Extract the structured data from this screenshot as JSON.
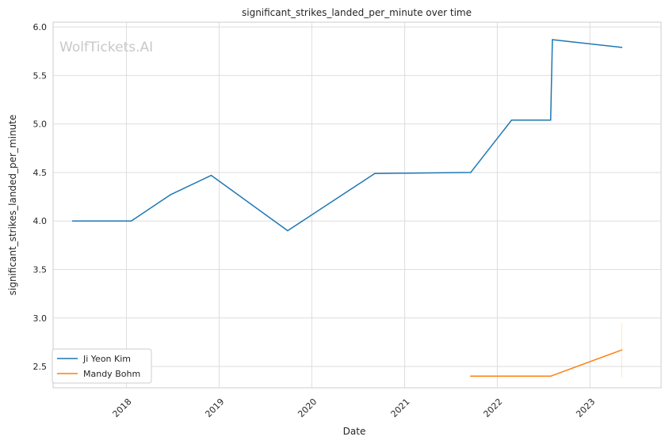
{
  "chart_data": {
    "type": "line",
    "title": "significant_strikes_landed_per_minute over time",
    "xlabel": "Date",
    "ylabel": "significant_strikes_landed_per_minute",
    "watermark": "WolfTickets.AI",
    "x_type": "date",
    "xlim": [
      "2017-03-18",
      "2023-10-08"
    ],
    "ylim": [
      2.28,
      6.05
    ],
    "x_ticks": [
      {
        "date": "2018-01-01",
        "label": "2018"
      },
      {
        "date": "2019-01-01",
        "label": "2019"
      },
      {
        "date": "2020-01-01",
        "label": "2020"
      },
      {
        "date": "2021-01-01",
        "label": "2021"
      },
      {
        "date": "2022-01-01",
        "label": "2022"
      },
      {
        "date": "2023-01-01",
        "label": "2023"
      }
    ],
    "y_ticks": [
      {
        "value": 2.5,
        "label": "2.5"
      },
      {
        "value": 3.0,
        "label": "3.0"
      },
      {
        "value": 3.5,
        "label": "3.5"
      },
      {
        "value": 4.0,
        "label": "4.0"
      },
      {
        "value": 4.5,
        "label": "4.5"
      },
      {
        "value": 5.0,
        "label": "5.0"
      },
      {
        "value": 5.5,
        "label": "5.5"
      },
      {
        "value": 6.0,
        "label": "6.0"
      }
    ],
    "grid": true,
    "legend_position": "lower-left",
    "series": [
      {
        "name": "Ji Yeon Kim",
        "color": "#1f77b4",
        "points": [
          {
            "x": "2017-06-03",
            "y": 4.0
          },
          {
            "x": "2018-01-20",
            "y": 4.0
          },
          {
            "x": "2018-06-23",
            "y": 4.27
          },
          {
            "x": "2018-12-01",
            "y": 4.47
          },
          {
            "x": "2019-09-28",
            "y": 3.9
          },
          {
            "x": "2020-09-05",
            "y": 4.49
          },
          {
            "x": "2021-09-18",
            "y": 4.5
          },
          {
            "x": "2022-02-26",
            "y": 5.04
          },
          {
            "x": "2022-07-30",
            "y": 5.04
          },
          {
            "x": "2022-08-06",
            "y": 5.87
          },
          {
            "x": "2023-05-06",
            "y": 5.79
          }
        ]
      },
      {
        "name": "Mandy Bohm",
        "color": "#ff7f0e",
        "points": [
          {
            "x": "2021-09-18",
            "y": 2.4
          },
          {
            "x": "2022-07-30",
            "y": 2.4
          },
          {
            "x": "2023-05-06",
            "y": 2.67
          }
        ]
      }
    ]
  }
}
